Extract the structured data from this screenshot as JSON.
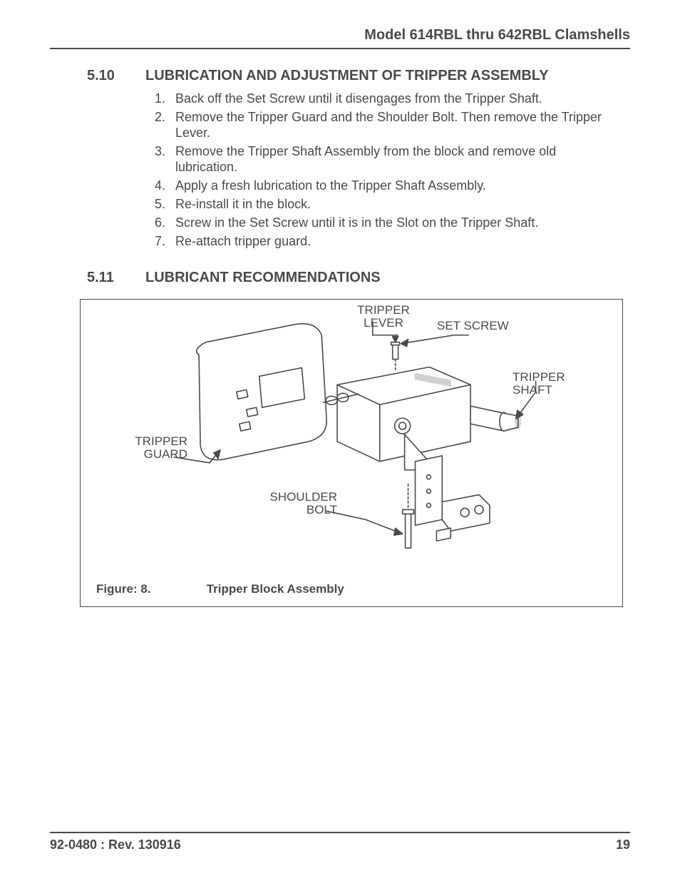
{
  "header": {
    "title": "Model 614RBL thru 642RBL Clamshells"
  },
  "sections": {
    "s510": {
      "number": "5.10",
      "title": "LUBRICATION AND ADJUSTMENT OF TRIPPER ASSEMBLY",
      "steps": [
        "Back off the Set Screw until it disengages from the Tripper Shaft.",
        "Remove the Tripper Guard and the Shoulder Bolt. Then remove the Tripper Lever.",
        "Remove the Tripper Shaft Assembly from the block and remove old lubrication.",
        "Apply a fresh lubrication to the Tripper Shaft Assembly.",
        "Re-install it in the block.",
        "Screw in the Set Screw until it is in the Slot on the Tripper Shaft.",
        "Re-attach tripper guard."
      ]
    },
    "s511": {
      "number": "5.11",
      "title": "LUBRICANT RECOMMENDATIONS"
    }
  },
  "figure": {
    "label": "Figure: 8.",
    "caption": "Tripper Block Assembly",
    "callouts": {
      "tripper_lever": "TRIPPER\nLEVER",
      "set_screw": "SET SCREW",
      "tripper_shaft": "TRIPPER\nSHAFT",
      "tripper_guard": "TRIPPER\nGUARD",
      "shoulder_bolt": "SHOULDER\nBOLT"
    },
    "colors": {
      "stroke": "#4a4a4a",
      "fill": "#ffffff"
    }
  },
  "footer": {
    "doc": "92-0480 : Rev. 130916",
    "page": "19"
  }
}
